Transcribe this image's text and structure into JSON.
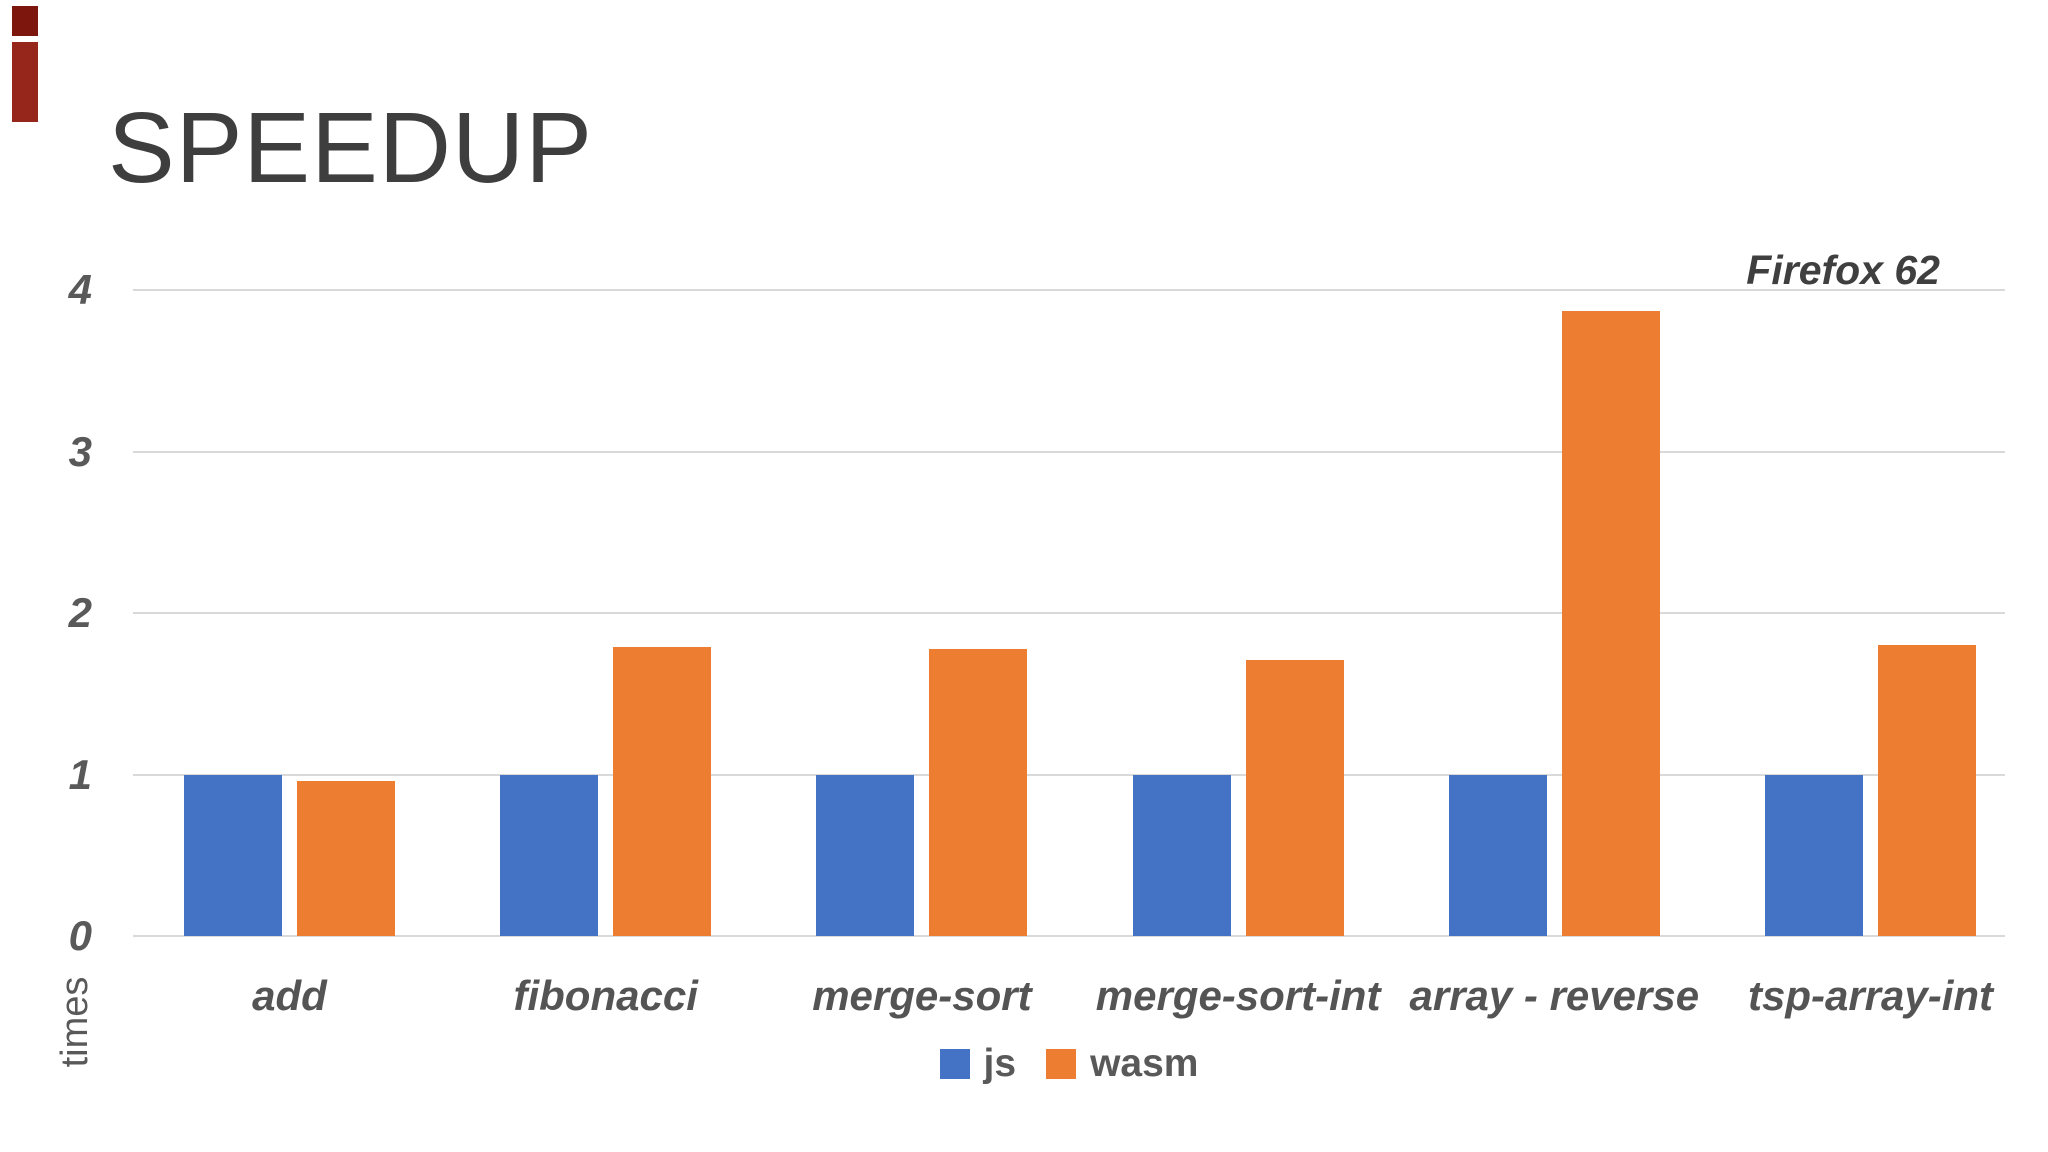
{
  "slide": {
    "decor": {
      "color_top": "#7d170e",
      "color_bottom": "#96261b"
    }
  },
  "chart_data": {
    "type": "bar",
    "title": "SPEEDUP",
    "annotation": "Firefox 62",
    "ylabel": "times",
    "xlabel": "",
    "ylim": [
      0,
      4
    ],
    "yticks": [
      0,
      1,
      2,
      3,
      4
    ],
    "grid": true,
    "legend_position": "bottom",
    "categories": [
      "add",
      "fibonacci",
      "merge-sort",
      "merge-sort-int",
      "array - reverse",
      "tsp-array-int"
    ],
    "series": [
      {
        "name": "js",
        "color": "#4472c4",
        "values": [
          1.0,
          1.0,
          1.0,
          1.0,
          1.0,
          1.0
        ]
      },
      {
        "name": "wasm",
        "color": "#ed7d31",
        "values": [
          0.96,
          1.79,
          1.78,
          1.71,
          3.87,
          1.8
        ]
      }
    ],
    "gridline_color": "#d9d9d9"
  }
}
